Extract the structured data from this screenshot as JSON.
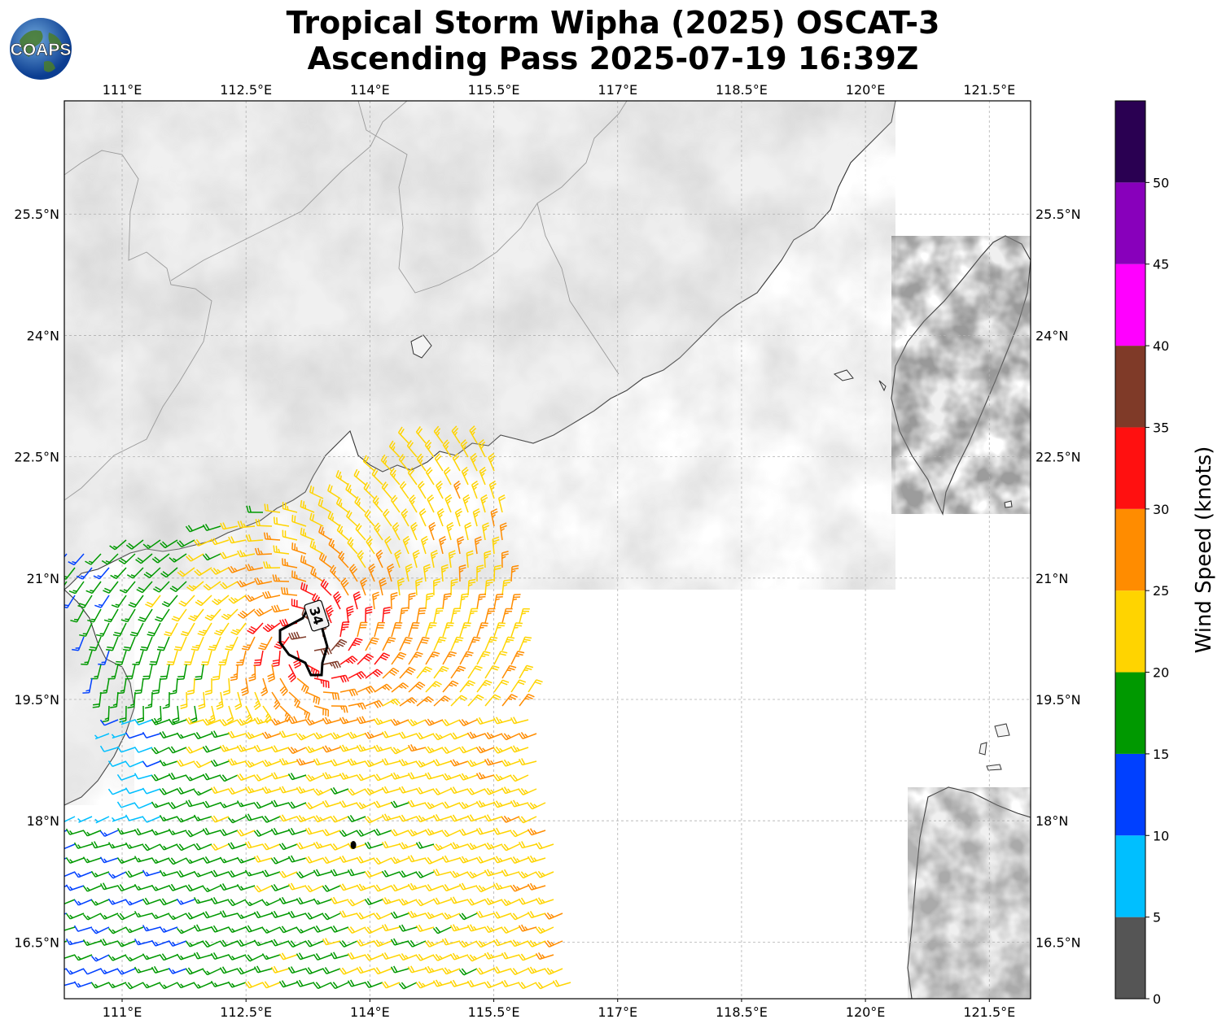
{
  "header": {
    "title_line1": "Tropical Storm Wipha (2025) OSCAT-3",
    "title_line2": "Ascending Pass 2025-07-19 16:39Z",
    "logo_text": "COAPS"
  },
  "map": {
    "lon_range": [
      110.3,
      122.0
    ],
    "lat_range": [
      15.8,
      26.9
    ],
    "lon_ticks": [
      {
        "value": 111,
        "label": "111°E"
      },
      {
        "value": 112.5,
        "label": "112.5°E"
      },
      {
        "value": 114,
        "label": "114°E"
      },
      {
        "value": 115.5,
        "label": "115.5°E"
      },
      {
        "value": 117,
        "label": "117°E"
      },
      {
        "value": 118.5,
        "label": "118.5°E"
      },
      {
        "value": 120,
        "label": "120°E"
      },
      {
        "value": 121.5,
        "label": "121.5°E"
      }
    ],
    "lat_ticks": [
      {
        "value": 16.5,
        "label": "16.5°N"
      },
      {
        "value": 18,
        "label": "18°N"
      },
      {
        "value": 19.5,
        "label": "19.5°N"
      },
      {
        "value": 21,
        "label": "21°N"
      },
      {
        "value": 22.5,
        "label": "22.5°N"
      },
      {
        "value": 24,
        "label": "24°N"
      },
      {
        "value": 25.5,
        "label": "25.5°N"
      }
    ],
    "gridlines": true,
    "wind_radius_contour_label": "34",
    "storm_center": {
      "lon": 113.8,
      "lat": 17.7
    }
  },
  "colorbar": {
    "label": "Wind Speed (knots)",
    "boundaries": [
      0,
      5,
      10,
      15,
      20,
      25,
      30,
      35,
      40,
      45,
      50,
      55
    ],
    "tick_labels": [
      "0",
      "5",
      "10",
      "15",
      "20",
      "25",
      "30",
      "35",
      "40",
      "45",
      "50"
    ],
    "colors": [
      "#555555",
      "#00bfff",
      "#0040ff",
      "#009900",
      "#ffd400",
      "#ff8c00",
      "#ff1010",
      "#7f3a28",
      "#ff00ff",
      "#8800bb",
      "#2a0052"
    ]
  },
  "colors": {
    "land": "#f2f2f2",
    "ocean": "#ffffff",
    "coast": "#333333",
    "grid": "#b0b0b0"
  }
}
